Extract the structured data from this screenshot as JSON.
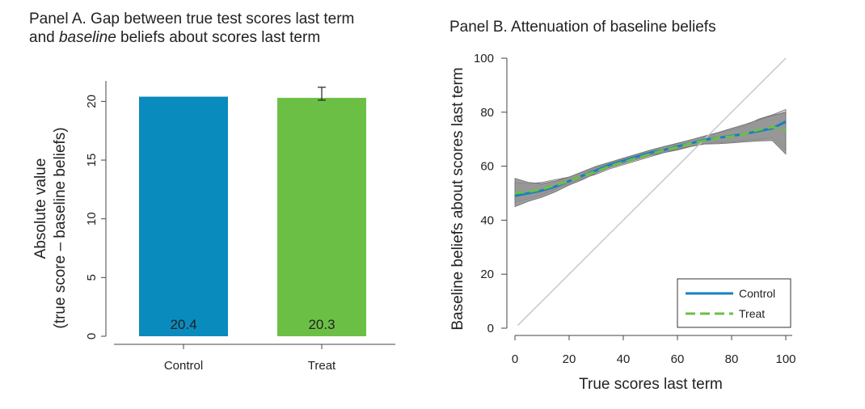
{
  "chart_data": [
    {
      "type": "bar",
      "title": {
        "line1": "Panel A. Gap between true test scores last term",
        "line2_pre": "and ",
        "line2_em": "baseline",
        "line2_post": " beliefs about scores last term"
      },
      "ylabel_line1": "Absolute value",
      "ylabel_line2": "(true score – baseline beliefs)",
      "xlabel": "",
      "categories": [
        "Control",
        "Treat"
      ],
      "values": [
        20.4,
        20.3
      ],
      "data_labels": [
        "20.4",
        "20.3"
      ],
      "error_bars": [
        null,
        {
          "low": 20.1,
          "high": 21.2
        }
      ],
      "colors": [
        "#0a8bbd",
        "#6cbf45"
      ],
      "ylim": [
        0,
        22
      ],
      "yticks": [
        0,
        5,
        10,
        15,
        20
      ],
      "ytick_labels": [
        "0",
        "5",
        "10",
        "15",
        "20"
      ]
    },
    {
      "type": "line",
      "title": "Panel B. Attenuation of baseline beliefs",
      "xlabel": "True scores last term",
      "ylabel": "Baseline beliefs about scores last term",
      "xlim": [
        0,
        100
      ],
      "ylim": [
        0,
        100
      ],
      "xticks": [
        0,
        20,
        40,
        60,
        80,
        100
      ],
      "xtick_labels": [
        "0",
        "20",
        "40",
        "60",
        "80",
        "100"
      ],
      "yticks": [
        0,
        20,
        40,
        60,
        80,
        100
      ],
      "ytick_labels": [
        "0",
        "20",
        "40",
        "60",
        "80",
        "100"
      ],
      "reference_line": {
        "x": [
          1,
          100
        ],
        "y": [
          1,
          100
        ],
        "color": "#c8c8c8"
      },
      "legend_position": "bottom-right",
      "series": [
        {
          "name": "Control",
          "style": "solid",
          "color": "#1a7fc1",
          "x": [
            0,
            5,
            10,
            15,
            20,
            25,
            30,
            35,
            40,
            45,
            50,
            55,
            60,
            65,
            70,
            75,
            80,
            85,
            90,
            95,
            100
          ],
          "y": [
            49,
            50,
            51,
            52.5,
            54.5,
            56.5,
            58.5,
            60.5,
            62,
            63.5,
            65,
            66,
            67.3,
            68.5,
            69.8,
            70.5,
            71.2,
            72,
            73,
            74,
            76.5
          ],
          "ci_low": [
            45,
            47,
            48.5,
            50.5,
            53,
            55,
            57.5,
            59.5,
            61,
            62.5,
            64,
            65,
            66.3,
            67.3,
            68.2,
            68.3,
            68.6,
            69,
            69.3,
            69.5,
            64.5
          ],
          "ci_high": [
            55.5,
            54,
            53.5,
            54.5,
            56,
            58,
            60,
            61.5,
            63,
            64.5,
            66,
            67.3,
            68.5,
            69.8,
            71.2,
            72.5,
            74,
            75.5,
            77.2,
            78.8,
            80
          ]
        },
        {
          "name": "Treat",
          "style": "dashed",
          "color": "#6cbf45",
          "x": [
            0,
            5,
            10,
            15,
            20,
            25,
            30,
            35,
            40,
            45,
            50,
            55,
            60,
            65,
            70,
            75,
            80,
            85,
            90,
            95,
            100
          ],
          "y": [
            50,
            50.5,
            51.5,
            53,
            54.5,
            56.5,
            58,
            60,
            61.5,
            63,
            64.5,
            66,
            67,
            68.5,
            69.5,
            70.5,
            71,
            72,
            73.5,
            74.5,
            73.5
          ],
          "ci_low": [
            46.5,
            48,
            49.5,
            51.5,
            53.5,
            55.5,
            57,
            59,
            60.5,
            62,
            63.5,
            65,
            66,
            67.3,
            68.3,
            68.8,
            69,
            69.5,
            70,
            70.5,
            66
          ],
          "ci_high": [
            54,
            53.5,
            54,
            55,
            56,
            57.8,
            59.5,
            61.2,
            62.8,
            64.3,
            65.8,
            67.2,
            68.3,
            69.8,
            71,
            72.3,
            73.5,
            75,
            77.5,
            79,
            81
          ]
        }
      ]
    }
  ]
}
